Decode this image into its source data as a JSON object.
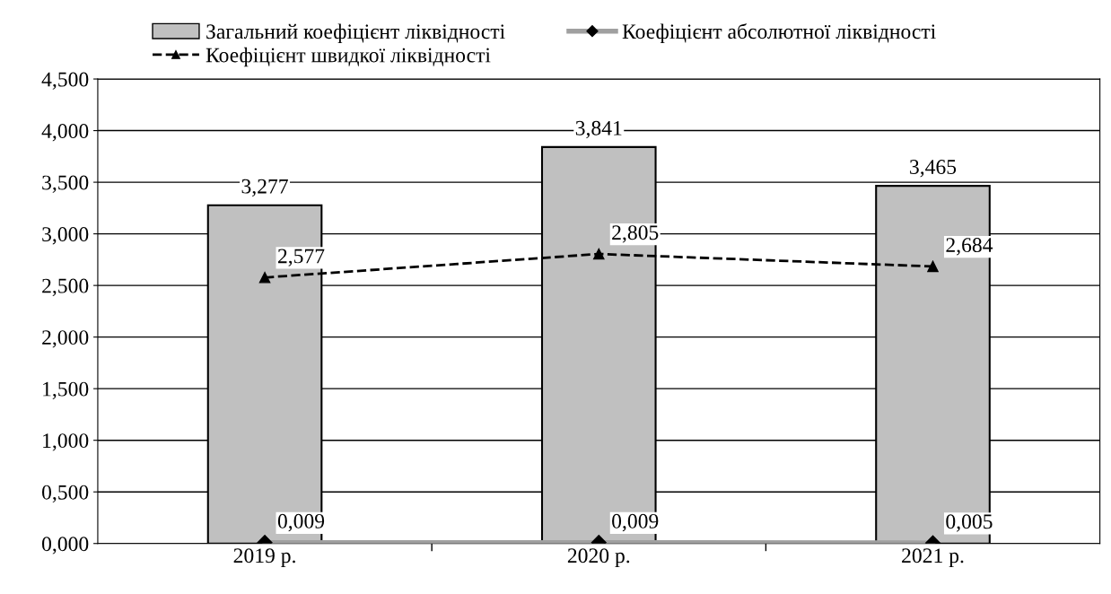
{
  "chart_data": {
    "type": "bar",
    "categories": [
      "2019 р.",
      "2020 р.",
      "2021 р."
    ],
    "series": [
      {
        "name": "Загальний коефіцієнт ліквідності",
        "color": "#c0c0c0",
        "values": [
          3.277,
          3.841,
          3.465
        ],
        "value_labels": [
          "3,277",
          "3,841",
          "3,465"
        ]
      },
      {
        "name": "Коефіцієнт абсолютної ліквідності",
        "type": "line",
        "color": "#a0a0a0",
        "marker": "diamond",
        "line_style": "solid",
        "values": [
          0.009,
          0.009,
          0.005
        ],
        "value_labels": [
          "0,009",
          "0,009",
          "0,005"
        ]
      },
      {
        "name": "Коефіцієнт швидкої ліквідності",
        "type": "line",
        "color": "#000000",
        "marker": "triangle",
        "line_style": "dashed",
        "values": [
          2.577,
          2.805,
          2.684
        ],
        "value_labels": [
          "2,577",
          "2,805",
          "2,684"
        ]
      }
    ],
    "ylim": [
      0,
      4.5
    ],
    "yticks": [
      {
        "value": 0,
        "label": "0,000"
      },
      {
        "value": 0.5,
        "label": "0,500"
      },
      {
        "value": 1,
        "label": "1,000"
      },
      {
        "value": 1.5,
        "label": "1,500"
      },
      {
        "value": 2,
        "label": "2,000"
      },
      {
        "value": 2.5,
        "label": "2,500"
      },
      {
        "value": 3,
        "label": "3,000"
      },
      {
        "value": 3.5,
        "label": "3,500"
      },
      {
        "value": 4,
        "label": "4,000"
      },
      {
        "value": 4.5,
        "label": "4,500"
      }
    ],
    "grid": "y",
    "legend": "top"
  }
}
